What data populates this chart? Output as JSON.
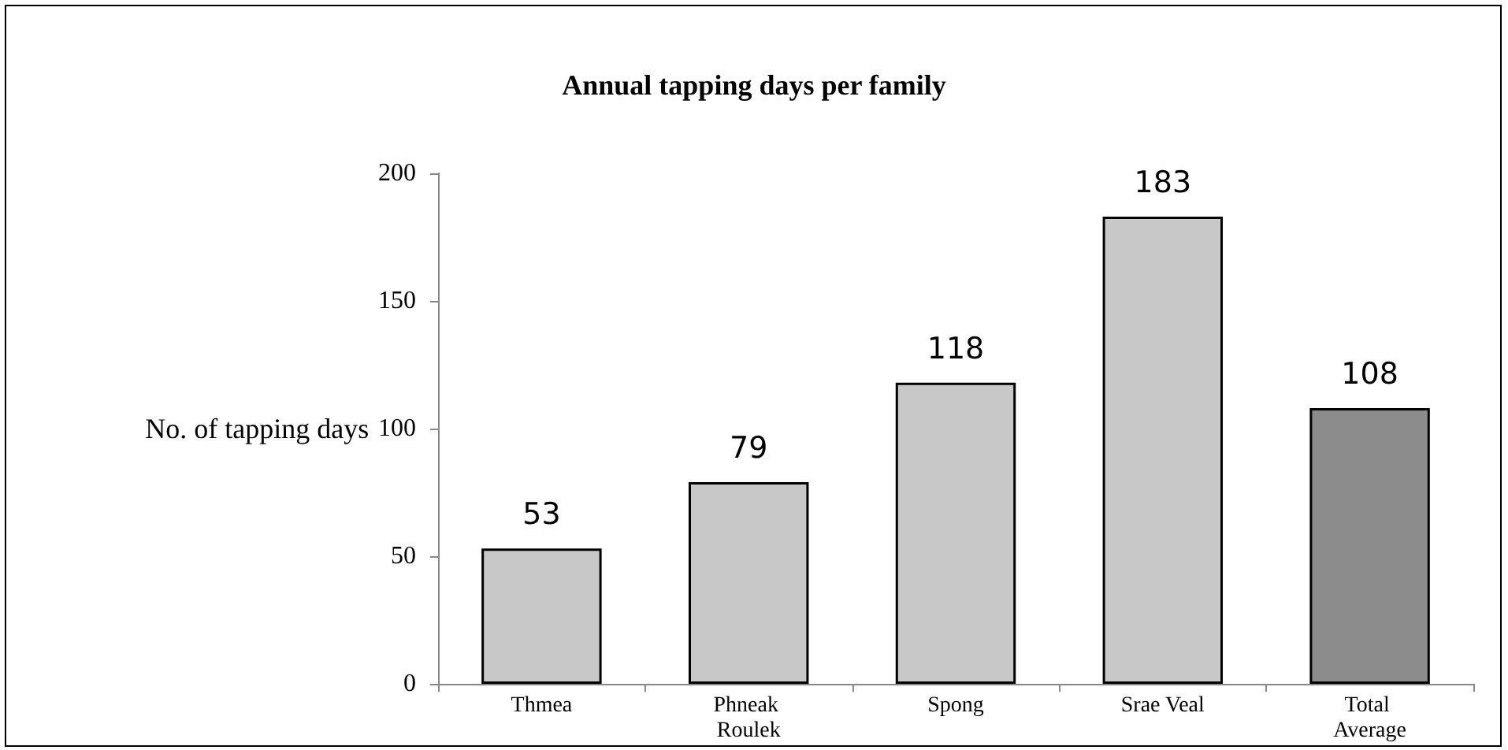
{
  "chart_data": {
    "type": "bar",
    "title": "Annual tapping days per family",
    "ylabel": "No. of tapping days",
    "categories": [
      "Thmea",
      "Phneak Roulek",
      "Spong",
      "Srae Veal",
      "Total Average"
    ],
    "values": [
      53,
      79,
      118,
      183,
      108
    ],
    "colors": [
      "#c8c8c8",
      "#c8c8c8",
      "#c8c8c8",
      "#c8c8c8",
      "#8c8c8c"
    ],
    "ylim": [
      0,
      200
    ],
    "yticks": [
      0,
      50,
      100,
      150,
      200
    ],
    "grid": false,
    "data_labels": true
  }
}
